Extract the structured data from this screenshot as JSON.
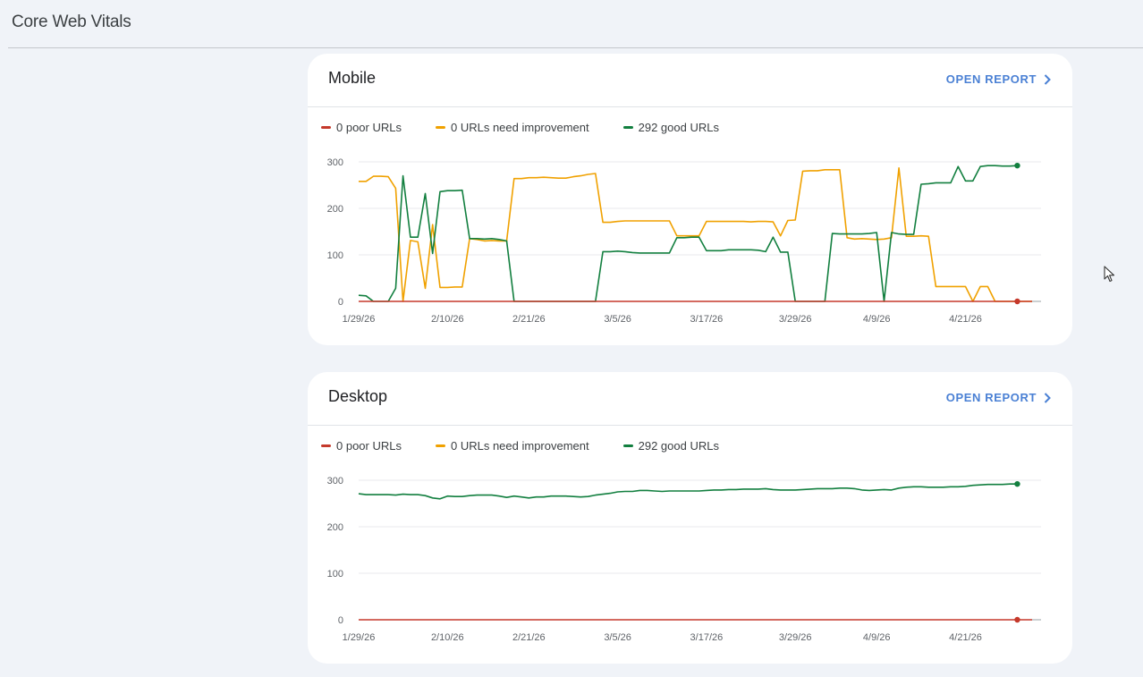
{
  "page": {
    "title": "Core Web Vitals"
  },
  "colors": {
    "poor": "#c5392b",
    "needs_improvement": "#f0a100",
    "good": "#127f3f",
    "link": "#4a80d4"
  },
  "cards": [
    {
      "id": "mobile",
      "title": "Mobile",
      "open_report_label": "OPEN REPORT",
      "legend": [
        {
          "label": "0 poor URLs",
          "color_key": "poor"
        },
        {
          "label": "0 URLs need improvement",
          "color_key": "needs_improvement"
        },
        {
          "label": "292 good URLs",
          "color_key": "good"
        }
      ]
    },
    {
      "id": "desktop",
      "title": "Desktop",
      "open_report_label": "OPEN REPORT",
      "legend": [
        {
          "label": "0 poor URLs",
          "color_key": "poor"
        },
        {
          "label": "0 URLs need improvement",
          "color_key": "needs_improvement"
        },
        {
          "label": "292 good URLs",
          "color_key": "good"
        }
      ]
    }
  ],
  "chart_data": [
    {
      "type": "line",
      "title": "Mobile",
      "ylim": [
        0,
        300
      ],
      "yticks": [
        0,
        100,
        200,
        300
      ],
      "x_tick_labels": [
        "1/29/26",
        "2/10/26",
        "2/21/26",
        "3/5/26",
        "3/17/26",
        "3/29/26",
        "4/9/26",
        "4/21/26"
      ],
      "x_tick_days": [
        0,
        12,
        23,
        35,
        47,
        59,
        70,
        82
      ],
      "x_range_days": [
        0,
        91
      ],
      "series": [
        {
          "name": "poor",
          "color_key": "poor",
          "points": [
            [
              0,
              0
            ],
            [
              91,
              0
            ]
          ]
        },
        {
          "name": "needs improvement",
          "color_key": "needs_improvement",
          "points": [
            [
              0,
              258
            ],
            [
              1,
              258
            ],
            [
              2,
              269
            ],
            [
              3,
              269
            ],
            [
              4,
              268
            ],
            [
              5,
              243
            ],
            [
              6,
              0
            ],
            [
              7,
              131
            ],
            [
              8,
              128
            ],
            [
              9,
              28
            ],
            [
              10,
              165
            ],
            [
              11,
              30
            ],
            [
              12,
              30
            ],
            [
              13,
              31
            ],
            [
              14,
              31
            ],
            [
              15,
              135
            ],
            [
              16,
              133
            ],
            [
              17,
              130
            ],
            [
              18,
              131
            ],
            [
              19,
              130
            ],
            [
              20,
              130
            ],
            [
              21,
              264
            ],
            [
              22,
              264
            ],
            [
              23,
              266
            ],
            [
              24,
              266
            ],
            [
              25,
              267
            ],
            [
              26,
              266
            ],
            [
              27,
              265
            ],
            [
              28,
              265
            ],
            [
              29,
              268
            ],
            [
              30,
              270
            ],
            [
              31,
              273
            ],
            [
              32,
              275
            ],
            [
              33,
              170
            ],
            [
              34,
              170
            ],
            [
              35,
              172
            ],
            [
              36,
              173
            ],
            [
              37,
              173
            ],
            [
              38,
              173
            ],
            [
              39,
              173
            ],
            [
              40,
              173
            ],
            [
              41,
              173
            ],
            [
              42,
              173
            ],
            [
              43,
              141
            ],
            [
              44,
              141
            ],
            [
              45,
              141
            ],
            [
              46,
              141
            ],
            [
              47,
              172
            ],
            [
              48,
              172
            ],
            [
              49,
              172
            ],
            [
              50,
              172
            ],
            [
              51,
              172
            ],
            [
              52,
              172
            ],
            [
              53,
              171
            ],
            [
              54,
              172
            ],
            [
              55,
              172
            ],
            [
              56,
              171
            ],
            [
              57,
              141
            ],
            [
              58,
              174
            ],
            [
              59,
              175
            ],
            [
              60,
              280
            ],
            [
              61,
              281
            ],
            [
              62,
              281
            ],
            [
              63,
              283
            ],
            [
              64,
              283
            ],
            [
              65,
              283
            ],
            [
              66,
              137
            ],
            [
              67,
              134
            ],
            [
              68,
              135
            ],
            [
              69,
              134
            ],
            [
              70,
              133
            ],
            [
              71,
              134
            ],
            [
              72,
              137
            ],
            [
              73,
              287
            ],
            [
              74,
              140
            ],
            [
              75,
              140
            ],
            [
              76,
              141
            ],
            [
              77,
              140
            ],
            [
              78,
              32
            ],
            [
              79,
              32
            ],
            [
              80,
              32
            ],
            [
              81,
              32
            ],
            [
              82,
              32
            ],
            [
              83,
              0
            ],
            [
              84,
              32
            ],
            [
              85,
              32
            ],
            [
              86,
              0
            ],
            [
              91,
              0
            ]
          ]
        },
        {
          "name": "good",
          "color_key": "good",
          "points": [
            [
              0,
              13
            ],
            [
              1,
              12
            ],
            [
              2,
              0
            ],
            [
              3,
              0
            ],
            [
              4,
              0
            ],
            [
              5,
              28
            ],
            [
              6,
              270
            ],
            [
              7,
              138
            ],
            [
              8,
              138
            ],
            [
              9,
              232
            ],
            [
              10,
              103
            ],
            [
              11,
              236
            ],
            [
              12,
              238
            ],
            [
              13,
              238
            ],
            [
              14,
              239
            ],
            [
              15,
              135
            ],
            [
              16,
              135
            ],
            [
              17,
              134
            ],
            [
              18,
              135
            ],
            [
              19,
              133
            ],
            [
              20,
              130
            ],
            [
              21,
              0
            ],
            [
              32,
              0
            ],
            [
              33,
              107
            ],
            [
              34,
              107
            ],
            [
              35,
              108
            ],
            [
              36,
              107
            ],
            [
              37,
              105
            ],
            [
              38,
              104
            ],
            [
              39,
              104
            ],
            [
              40,
              104
            ],
            [
              41,
              104
            ],
            [
              42,
              104
            ],
            [
              43,
              137
            ],
            [
              44,
              137
            ],
            [
              45,
              138
            ],
            [
              46,
              138
            ],
            [
              47,
              109
            ],
            [
              48,
              109
            ],
            [
              49,
              109
            ],
            [
              50,
              111
            ],
            [
              51,
              111
            ],
            [
              52,
              111
            ],
            [
              53,
              111
            ],
            [
              54,
              110
            ],
            [
              55,
              107
            ],
            [
              56,
              138
            ],
            [
              57,
              106
            ],
            [
              58,
              106
            ],
            [
              59,
              0
            ],
            [
              63,
              0
            ],
            [
              64,
              146
            ],
            [
              65,
              145
            ],
            [
              66,
              145
            ],
            [
              67,
              145
            ],
            [
              68,
              145
            ],
            [
              69,
              146
            ],
            [
              70,
              148
            ],
            [
              71,
              0
            ],
            [
              72,
              148
            ],
            [
              73,
              145
            ],
            [
              74,
              144
            ],
            [
              75,
              144
            ],
            [
              76,
              252
            ],
            [
              77,
              253
            ],
            [
              78,
              255
            ],
            [
              79,
              255
            ],
            [
              80,
              255
            ],
            [
              81,
              290
            ],
            [
              82,
              259
            ],
            [
              83,
              259
            ],
            [
              84,
              290
            ],
            [
              85,
              292
            ],
            [
              86,
              292
            ],
            [
              87,
              291
            ],
            [
              88,
              291
            ],
            [
              89,
              292
            ]
          ]
        }
      ]
    },
    {
      "type": "line",
      "title": "Desktop",
      "ylim": [
        0,
        300
      ],
      "yticks": [
        0,
        100,
        200,
        300
      ],
      "x_tick_labels": [
        "1/29/26",
        "2/10/26",
        "2/21/26",
        "3/5/26",
        "3/17/26",
        "3/29/26",
        "4/9/26",
        "4/21/26"
      ],
      "x_tick_days": [
        0,
        12,
        23,
        35,
        47,
        59,
        70,
        82
      ],
      "x_range_days": [
        0,
        91
      ],
      "series": [
        {
          "name": "poor",
          "color_key": "poor",
          "points": [
            [
              0,
              0
            ],
            [
              91,
              0
            ]
          ]
        },
        {
          "name": "good",
          "color_key": "good",
          "points": [
            [
              0,
              271
            ],
            [
              1,
              269
            ],
            [
              2,
              269
            ],
            [
              3,
              269
            ],
            [
              4,
              269
            ],
            [
              5,
              268
            ],
            [
              6,
              270
            ],
            [
              7,
              269
            ],
            [
              8,
              269
            ],
            [
              9,
              267
            ],
            [
              10,
              262
            ],
            [
              11,
              260
            ],
            [
              12,
              266
            ],
            [
              13,
              265
            ],
            [
              14,
              265
            ],
            [
              15,
              267
            ],
            [
              16,
              268
            ],
            [
              17,
              268
            ],
            [
              18,
              268
            ],
            [
              19,
              266
            ],
            [
              20,
              263
            ],
            [
              21,
              266
            ],
            [
              22,
              264
            ],
            [
              23,
              262
            ],
            [
              24,
              264
            ],
            [
              25,
              264
            ],
            [
              26,
              266
            ],
            [
              27,
              266
            ],
            [
              28,
              266
            ],
            [
              29,
              265
            ],
            [
              30,
              264
            ],
            [
              31,
              265
            ],
            [
              32,
              268
            ],
            [
              33,
              270
            ],
            [
              34,
              272
            ],
            [
              35,
              275
            ],
            [
              36,
              276
            ],
            [
              37,
              276
            ],
            [
              38,
              278
            ],
            [
              39,
              278
            ],
            [
              40,
              277
            ],
            [
              41,
              276
            ],
            [
              42,
              277
            ],
            [
              43,
              277
            ],
            [
              44,
              277
            ],
            [
              45,
              277
            ],
            [
              46,
              277
            ],
            [
              47,
              278
            ],
            [
              48,
              279
            ],
            [
              49,
              279
            ],
            [
              50,
              280
            ],
            [
              51,
              280
            ],
            [
              52,
              281
            ],
            [
              53,
              281
            ],
            [
              54,
              281
            ],
            [
              55,
              282
            ],
            [
              56,
              280
            ],
            [
              57,
              279
            ],
            [
              58,
              279
            ],
            [
              59,
              279
            ],
            [
              60,
              280
            ],
            [
              61,
              281
            ],
            [
              62,
              282
            ],
            [
              63,
              282
            ],
            [
              64,
              282
            ],
            [
              65,
              283
            ],
            [
              66,
              283
            ],
            [
              67,
              282
            ],
            [
              68,
              279
            ],
            [
              69,
              278
            ],
            [
              70,
              279
            ],
            [
              71,
              280
            ],
            [
              72,
              279
            ],
            [
              73,
              283
            ],
            [
              74,
              285
            ],
            [
              75,
              286
            ],
            [
              76,
              286
            ],
            [
              77,
              285
            ],
            [
              78,
              285
            ],
            [
              79,
              285
            ],
            [
              80,
              286
            ],
            [
              81,
              286
            ],
            [
              82,
              287
            ],
            [
              83,
              289
            ],
            [
              84,
              290
            ],
            [
              85,
              291
            ],
            [
              86,
              291
            ],
            [
              87,
              291
            ],
            [
              88,
              292
            ],
            [
              89,
              292
            ]
          ]
        }
      ]
    }
  ]
}
